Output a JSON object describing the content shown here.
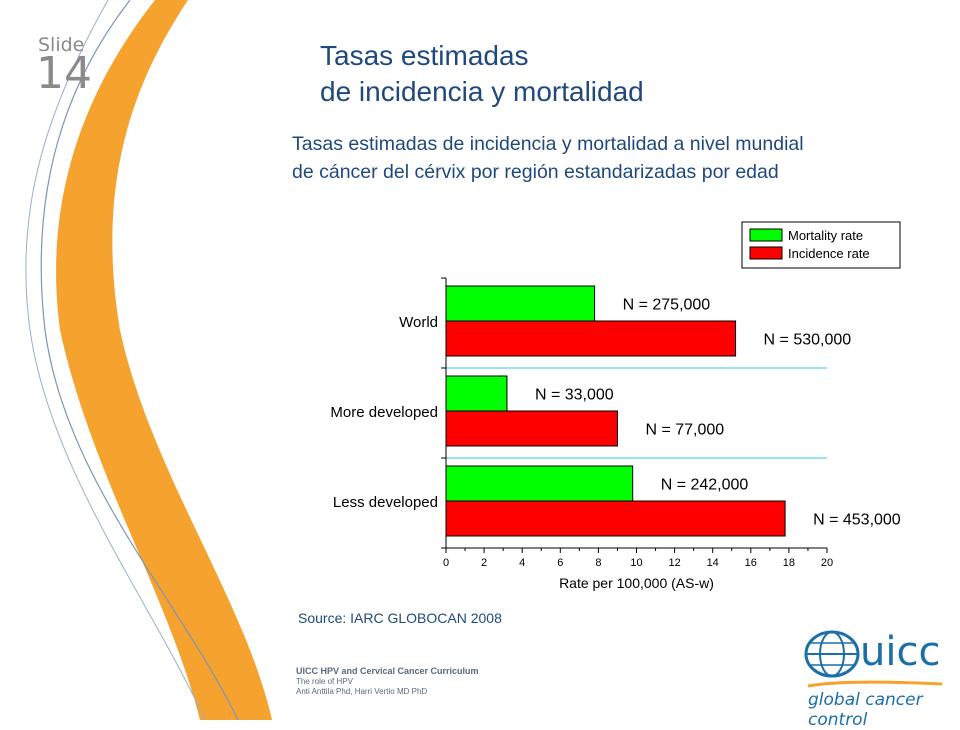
{
  "slide": {
    "label": "Slide",
    "number": "14"
  },
  "title": {
    "line1": "Tasas estimadas",
    "line2": "de incidencia y mortalidad"
  },
  "subtitle": {
    "line1": "Tasas estimadas de incidencia y mortalidad a  nivel mundial",
    "line2": "de cáncer del cérvix por región estandarizadas por edad"
  },
  "source": "Source: IARC GLOBOCAN 2008",
  "footer": {
    "line1": "UICC  HPV and Cervical Cancer Curriculum",
    "line2": "The role of HPV",
    "line3": "Anti Anttila Phd, Harri Vertio MD PhD"
  },
  "logo": {
    "word": "uicc",
    "tagline": "global cancer control"
  },
  "colors": {
    "mortality": "#00ff00",
    "incidence": "#ff0000",
    "title": "#1f497d",
    "orange": "#f5a22e",
    "separator": "#33cccc"
  },
  "chart_data": {
    "type": "bar",
    "orientation": "horizontal",
    "categories": [
      "World",
      "More developed",
      "Less developed"
    ],
    "series": [
      {
        "name": "Mortality rate",
        "values": [
          7.8,
          3.2,
          9.8
        ],
        "labels": [
          "N = 275,000",
          "N = 33,000",
          "N = 242,000"
        ]
      },
      {
        "name": "Incidence rate",
        "values": [
          15.2,
          9.0,
          17.8
        ],
        "labels": [
          "N = 530,000",
          "N = 77,000",
          "N = 453,000"
        ]
      }
    ],
    "xlabel": "Rate per 100,000 (AS-w)",
    "xlim": [
      0,
      20
    ],
    "xticks": [
      "0",
      "2",
      "4",
      "6",
      "8",
      "10",
      "12",
      "14",
      "16",
      "18",
      "20"
    ],
    "legend_position": "top-right"
  }
}
